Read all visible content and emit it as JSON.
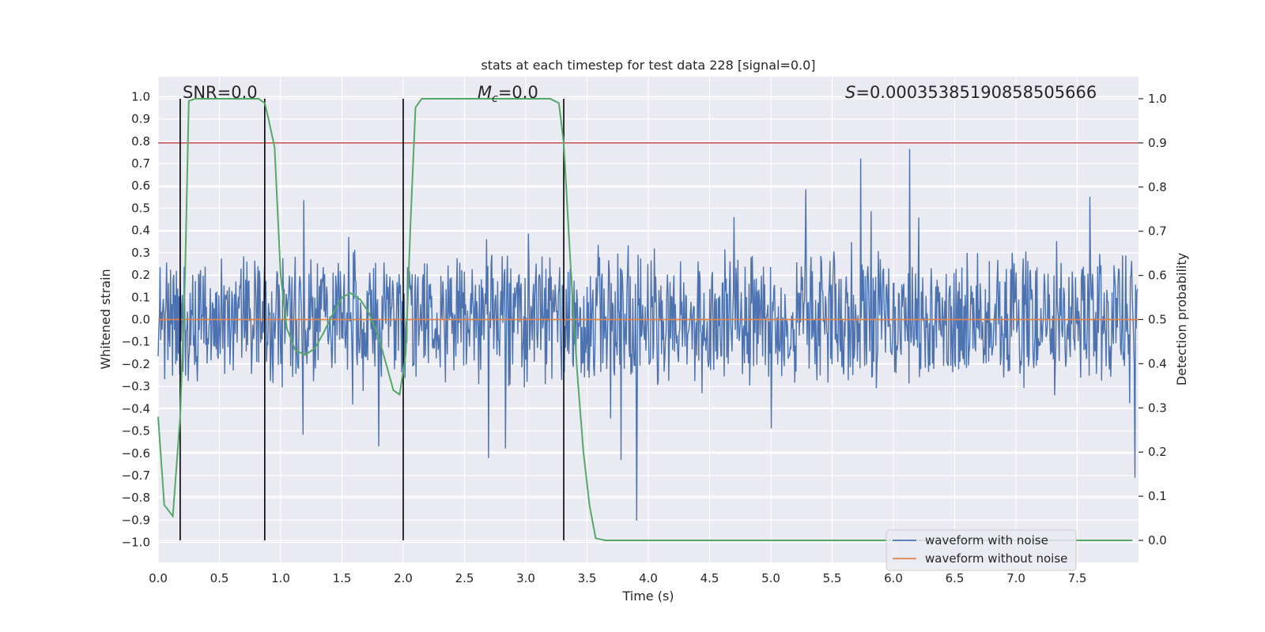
{
  "chart_data": {
    "type": "line",
    "title": "stats at each timestep for test data 228 [signal=0.0]",
    "xlabel": "Time (s)",
    "ylabel": "Whitened strain",
    "y2label": "Detection probability",
    "xlim": [
      0.0,
      8.0
    ],
    "ylim": [
      -1.09,
      1.09
    ],
    "y2lim": [
      -0.05,
      1.05
    ],
    "x_ticks": [
      "0.0",
      "0.5",
      "1.0",
      "1.5",
      "2.0",
      "2.5",
      "3.0",
      "3.5",
      "4.0",
      "4.5",
      "5.0",
      "5.5",
      "6.0",
      "6.5",
      "7.0",
      "7.5"
    ],
    "y_ticks": [
      "1.0",
      "0.9",
      "0.8",
      "0.7",
      "0.6",
      "0.5",
      "0.4",
      "0.3",
      "0.2",
      "0.1",
      "0.0",
      "−0.1",
      "−0.2",
      "−0.3",
      "−0.4",
      "−0.5",
      "−0.6",
      "−0.7",
      "−0.8",
      "−0.9",
      "−1.0"
    ],
    "y2_ticks": [
      "1.0",
      "0.9",
      "0.8",
      "0.7",
      "0.6",
      "0.5",
      "0.4",
      "0.3",
      "0.2",
      "0.1",
      "0.0"
    ],
    "annotations": {
      "snr": "SNR=0.0",
      "mc_symbol": "M",
      "mc_sub": "c",
      "mc_value": "=0.0",
      "s_symbol": "S",
      "s_value": "=0.00035385190858505666"
    },
    "threshold": 0.9,
    "vertical_lines": [
      0.18,
      0.87,
      2.0,
      3.31
    ],
    "noise_envelope": {
      "core_amplitude": 0.32,
      "peak_amplitude": 0.98,
      "samples": 1500,
      "seed": 228
    },
    "clean_waveform": 0.0,
    "detection_probability": {
      "x": [
        0.0,
        0.05,
        0.12,
        0.18,
        0.22,
        0.25,
        0.3,
        0.35,
        0.5,
        0.7,
        0.82,
        0.87,
        0.9,
        0.95,
        1.0,
        1.05,
        1.12,
        1.2,
        1.28,
        1.35,
        1.42,
        1.5,
        1.57,
        1.65,
        1.72,
        1.8,
        1.86,
        1.92,
        1.97,
        2.02,
        2.06,
        2.1,
        2.15,
        2.5,
        3.0,
        3.2,
        3.27,
        3.31,
        3.37,
        3.42,
        3.47,
        3.52,
        3.57,
        3.65,
        4.0,
        5.0,
        6.0,
        7.0,
        7.95
      ],
      "y": [
        0.28,
        0.08,
        0.055,
        0.28,
        0.6,
        0.995,
        1.0,
        1.0,
        1.0,
        1.0,
        1.0,
        0.99,
        0.955,
        0.89,
        0.6,
        0.48,
        0.43,
        0.42,
        0.435,
        0.47,
        0.51,
        0.55,
        0.56,
        0.545,
        0.515,
        0.46,
        0.4,
        0.34,
        0.33,
        0.42,
        0.72,
        0.98,
        1.0,
        1.0,
        1.0,
        1.0,
        0.99,
        0.9,
        0.6,
        0.38,
        0.2,
        0.08,
        0.005,
        0.0,
        0.0,
        0.0,
        0.0,
        0.0,
        0.0
      ]
    },
    "legend": {
      "placement": "lower-right",
      "entries": [
        {
          "label": "waveform with noise",
          "color": "#4c72b0"
        },
        {
          "label": "waveform without noise",
          "color": "#dd8452"
        }
      ]
    },
    "colors": {
      "plot_bg": "#eaeaf2",
      "grid": "#ffffff",
      "noise": "#4c72b0",
      "clean": "#dd8452",
      "probability": "#55a868",
      "threshold": "#c44e52",
      "vline": "#000000"
    }
  }
}
